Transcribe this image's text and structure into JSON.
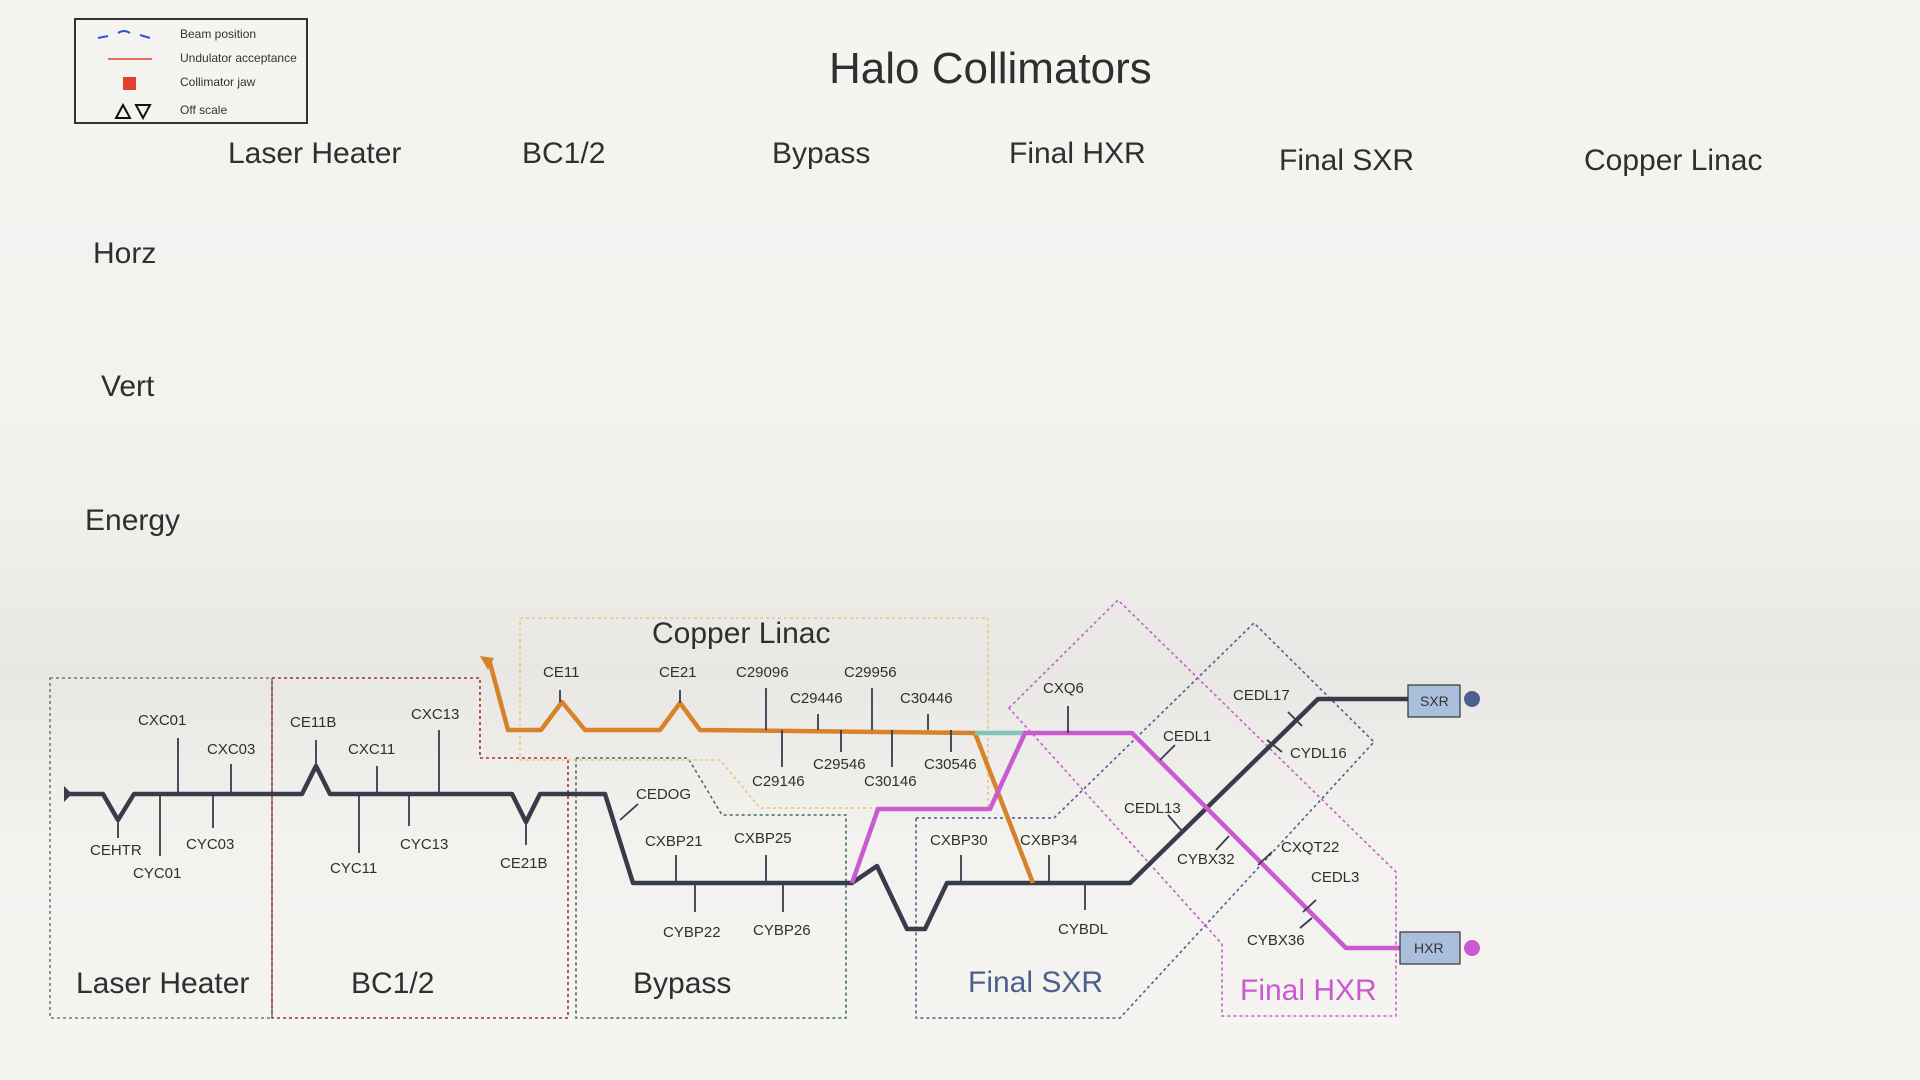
{
  "legend": {
    "beam_position": "Beam position",
    "undulator_acceptance": "Undulator acceptance",
    "collimator_jaw": "Collimator jaw",
    "off_scale": "Off scale"
  },
  "title": "Halo Collimators",
  "sections": {
    "laser_heater": "Laser Heater",
    "bc12": "BC1/2",
    "bypass": "Bypass",
    "final_hxr": "Final HXR",
    "final_sxr": "Final SXR",
    "copper_linac": "Copper Linac"
  },
  "rows": {
    "horz": "Horz",
    "vert": "Vert",
    "energy": "Energy"
  },
  "diagram": {
    "regions": {
      "laser_heater": "Laser Heater",
      "bc12": "BC1/2",
      "bypass": "Bypass",
      "copper_linac": "Copper Linac",
      "final_sxr": "Final SXR",
      "final_hxr": "Final HXR"
    },
    "endpoints": {
      "sxr": "SXR",
      "hxr": "HXR"
    },
    "collimators": {
      "CXC01": "CXC01",
      "CXC03": "CXC03",
      "CEHTR": "CEHTR",
      "CYC01": "CYC01",
      "CYC03": "CYC03",
      "CE11B": "CE11B",
      "CXC11": "CXC11",
      "CXC13": "CXC13",
      "CYC11": "CYC11",
      "CYC13": "CYC13",
      "CE21B": "CE21B",
      "CE11": "CE11",
      "CE21": "CE21",
      "C29096": "C29096",
      "C29956": "C29956",
      "C29446": "C29446",
      "C30446": "C30446",
      "C29146": "C29146",
      "C29546": "C29546",
      "C30146": "C30146",
      "C30546": "C30546",
      "CEDOG": "CEDOG",
      "CXBP21": "CXBP21",
      "CXBP25": "CXBP25",
      "CYBP22": "CYBP22",
      "CYBP26": "CYBP26",
      "CXBP30": "CXBP30",
      "CXBP34": "CXBP34",
      "CYBDL": "CYBDL",
      "CXQ6": "CXQ6",
      "CEDL1": "CEDL1",
      "CEDL13": "CEDL13",
      "CYBX32": "CYBX32",
      "CEDL17": "CEDL17",
      "CYDL16": "CYDL16",
      "CXQT22": "CXQT22",
      "CEDL3": "CEDL3",
      "CYBX36": "CYBX36"
    }
  },
  "colors": {
    "main_beam": "#363c4a",
    "copper": "#d6822a",
    "sxr": "#4c5f8f",
    "hxr": "#c95ad0",
    "teal": "#7fc6b8",
    "laser_box": "#7a7a7a",
    "bc_box": "#a5332b",
    "bypass_box": "#3f6e5c",
    "copper_box": "#e4c779",
    "endpoint_fill": "#a9bfdc",
    "legend_beam": "#2a55d8",
    "legend_red": "#e4402f"
  }
}
